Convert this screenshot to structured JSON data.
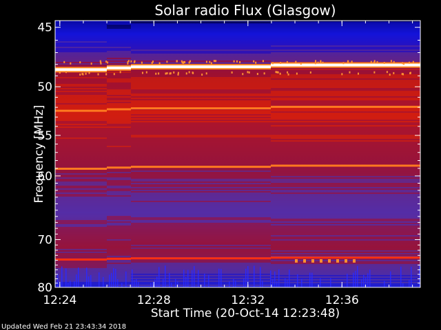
{
  "chart_data": {
    "type": "heatmap",
    "title": "Solar radio Flux (Glasgow)",
    "xlabel": "Start Time (20-Oct-14 12:23:48)",
    "ylabel": "Frequency [MHz]",
    "x_ticks": [
      "12:24",
      "12:28",
      "12:32",
      "12:36"
    ],
    "y_ticks": [
      45,
      50,
      55,
      60,
      70,
      80
    ],
    "y_scale": "reciprocal",
    "ylim": [
      80,
      44.5
    ],
    "xlim": [
      "12:23:48",
      "12:39:20"
    ],
    "colormap": [
      "#000060",
      "#1010e0",
      "#5030b0",
      "#9a1040",
      "#d82010",
      "#ff7020",
      "#ffffff"
    ],
    "emission_lines": [
      {
        "freq_mhz": 48.2,
        "intensity": "very high"
      },
      {
        "freq_mhz": 52.1,
        "intensity": "high"
      },
      {
        "freq_mhz": 58.8,
        "intensity": "high"
      },
      {
        "freq_mhz": 73.6,
        "intensity": "medium"
      }
    ]
  },
  "footer": {
    "updated": "Updated Wed Feb 21 23:43:34 2018"
  }
}
